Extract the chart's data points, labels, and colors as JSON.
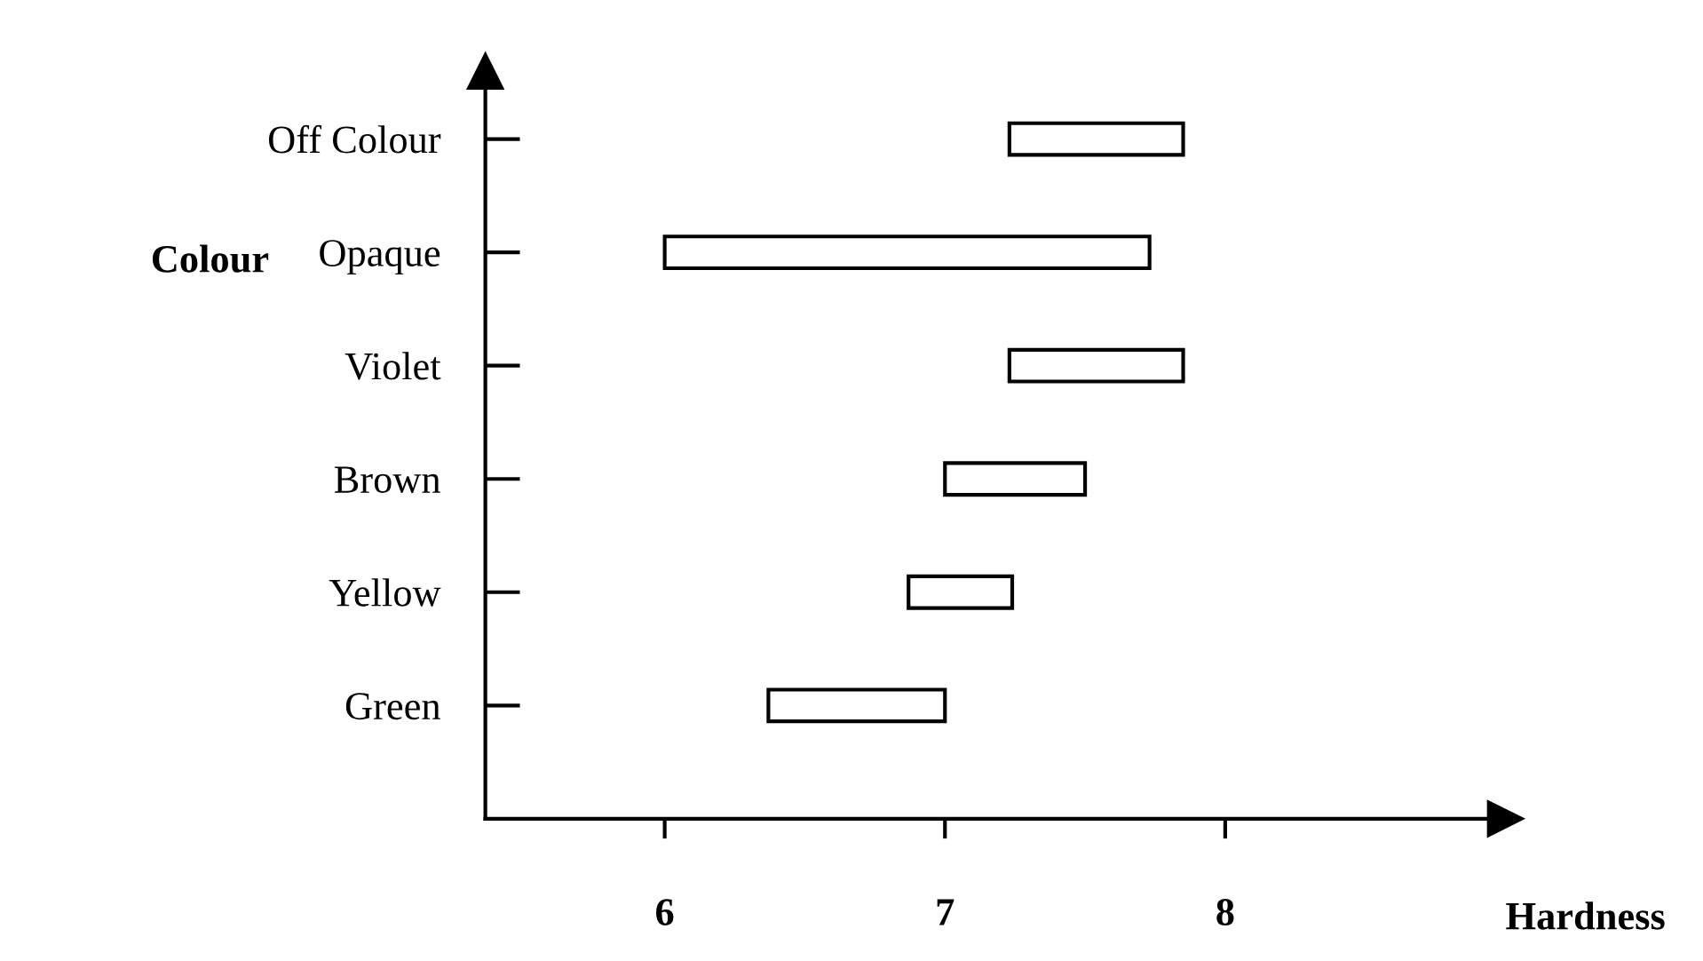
{
  "chart_data": {
    "type": "bar",
    "orientation": "horizontal",
    "xlabel": "Hardness",
    "ylabel": "Colour",
    "categories": [
      "Off Colour",
      "Opaque",
      "Violet",
      "Brown",
      "Yellow",
      "Green"
    ],
    "base": [
      7.23,
      6.0,
      7.23,
      7.0,
      6.87,
      6.37
    ],
    "values": [
      0.62,
      1.73,
      0.62,
      0.5,
      0.37,
      0.63
    ],
    "color": "#ffffff",
    "xlim": [
      5.36,
      9.0
    ],
    "xticks": [
      6,
      7,
      8
    ],
    "grid": false,
    "legend": false
  }
}
